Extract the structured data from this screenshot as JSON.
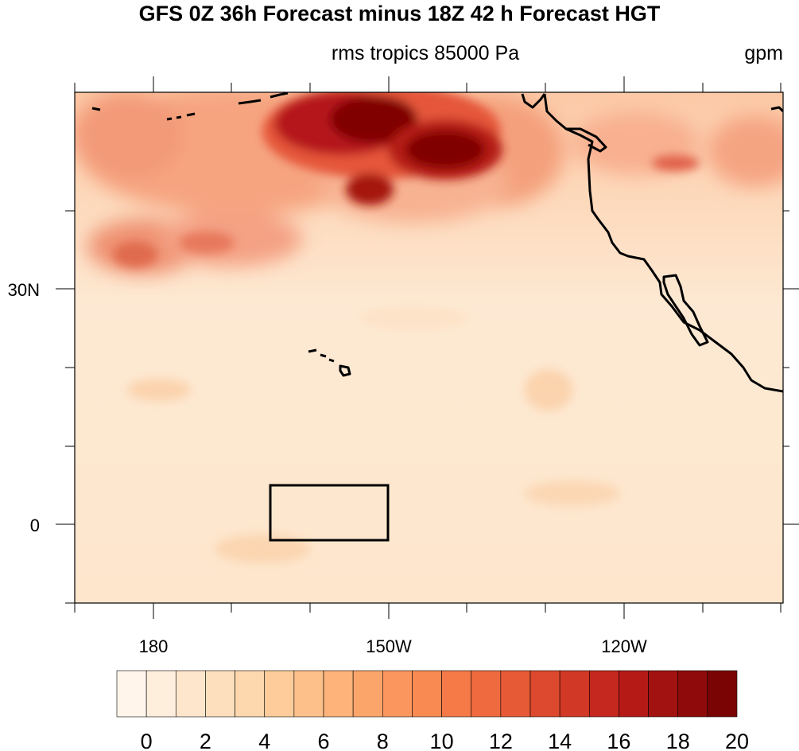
{
  "title": "GFS 0Z 36h Forecast minus 18Z 42 h Forecast HGT",
  "subtitle": "rms tropics 85000 Pa",
  "units": "gpm",
  "map": {
    "lon_labels": [
      "180",
      "150W",
      "120W"
    ],
    "lat_labels": [
      "30N",
      "0"
    ],
    "colorbar": {
      "tick_labels": [
        "0",
        "2",
        "4",
        "6",
        "8",
        "10",
        "12",
        "14",
        "16",
        "18",
        "20"
      ],
      "colors": [
        "#fff5eb",
        "#feeedc",
        "#fee6cc",
        "#fddfbd",
        "#fdd7ad",
        "#fdcc9a",
        "#fdc08a",
        "#fdb37a",
        "#fca56b",
        "#fb975e",
        "#f98a52",
        "#f57a48",
        "#ef6a3e",
        "#e75a36",
        "#dd492e",
        "#d23826",
        "#c4281f",
        "#b51a17",
        "#a21210",
        "#8f0b0b",
        "#7a0404"
      ]
    },
    "colors": {
      "ocean_tropics": "#fde8cf",
      "midlat_orange": "#f9b48f",
      "max_red": "#7f0000",
      "coastline": "#000000"
    }
  }
}
